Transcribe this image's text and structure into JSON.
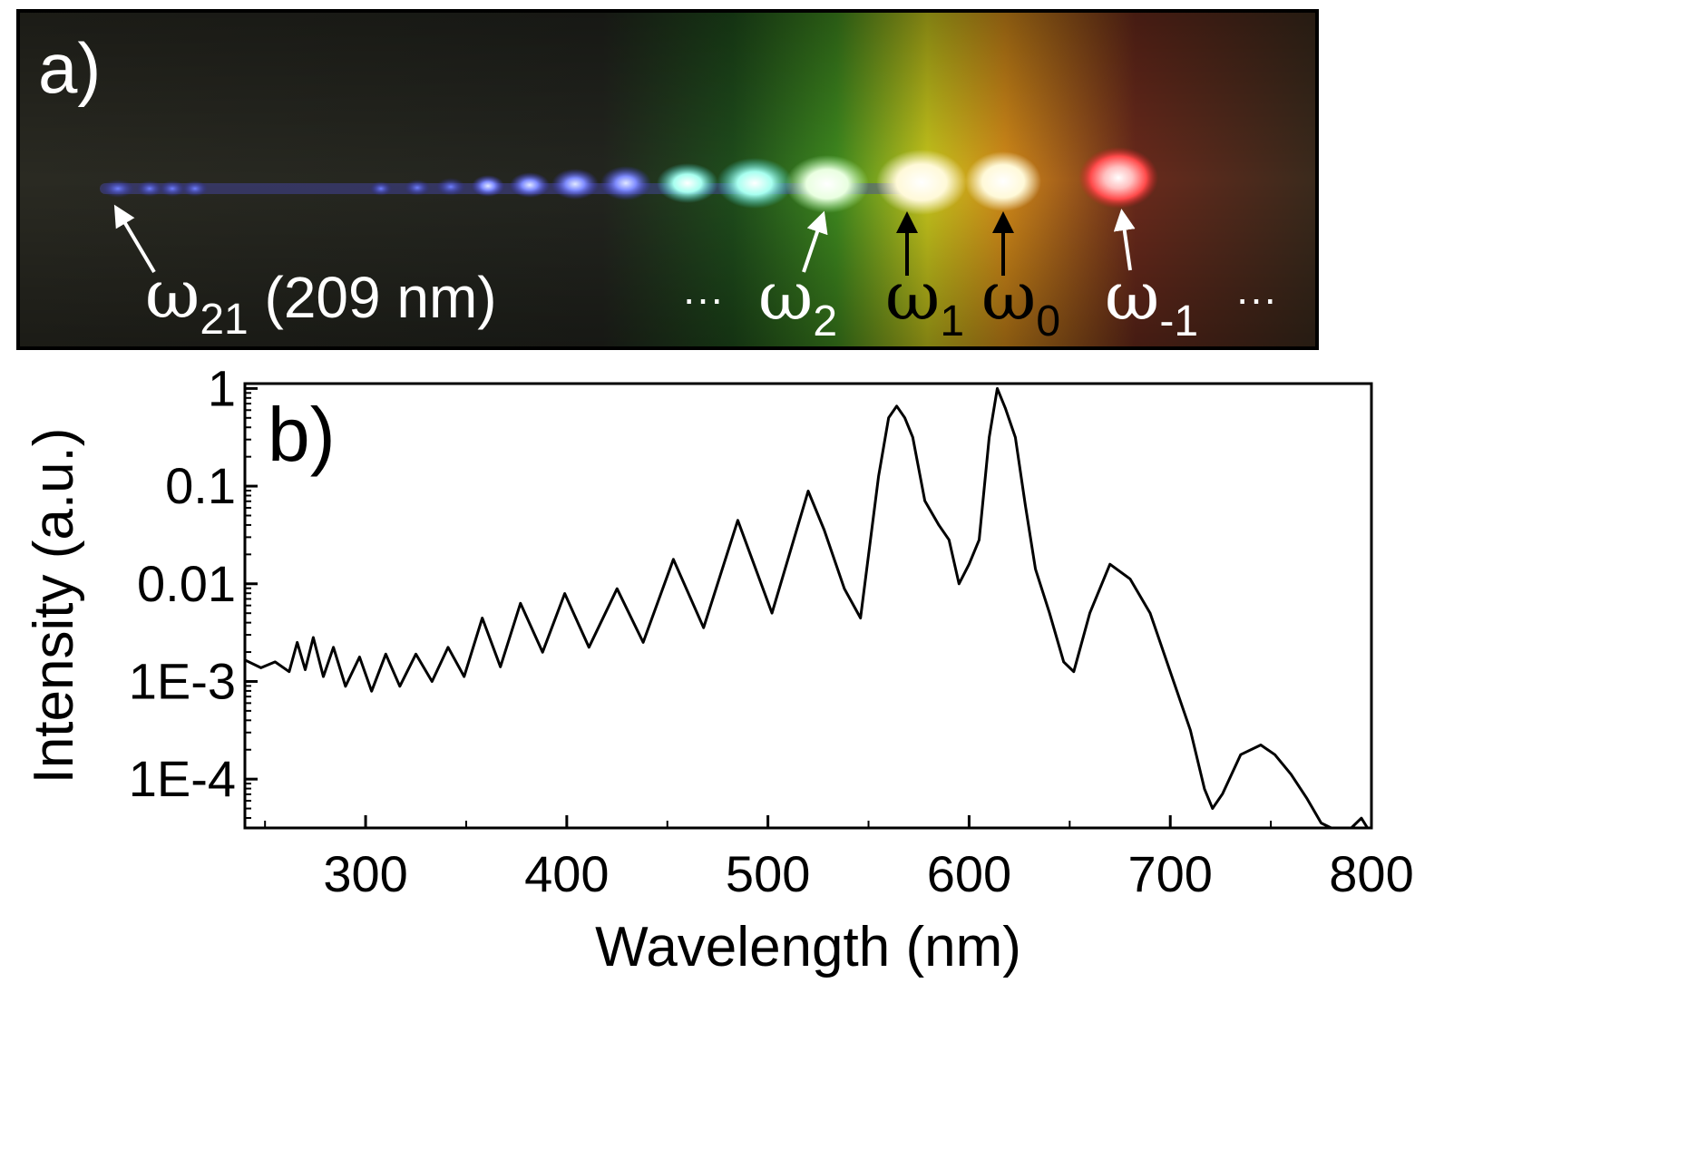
{
  "panel_a": {
    "label": "a)",
    "orders": [
      {
        "name": "omega-21",
        "symbol": "ω",
        "sub": "21",
        "suffix": " (209 nm)",
        "color": "#ffffff",
        "arrow_color": "#ffffff"
      },
      {
        "name": "omega-2",
        "symbol": "ω",
        "sub": "2",
        "suffix": "",
        "color": "#ffffff",
        "arrow_color": "#ffffff"
      },
      {
        "name": "omega-1",
        "symbol": "ω",
        "sub": "1",
        "suffix": "",
        "color": "#000000",
        "arrow_color": "#000000"
      },
      {
        "name": "omega-0",
        "symbol": "ω",
        "sub": "0",
        "suffix": "",
        "color": "#000000",
        "arrow_color": "#000000"
      },
      {
        "name": "omega-minus1",
        "symbol": "ω",
        "sub": "-1",
        "suffix": "",
        "color": "#ffffff",
        "arrow_color": "#ffffff"
      }
    ],
    "ellipsis_left": "···",
    "ellipsis_right": "···",
    "colors": {
      "background": "#2a261c",
      "border": "#000000"
    }
  },
  "panel_b": {
    "label": "b)"
  },
  "chart_data": {
    "type": "line",
    "title": "",
    "xlabel": "Wavelength (nm)",
    "ylabel": "Intensity (a.u.)",
    "xlim": [
      240,
      800
    ],
    "ylim_log10": [
      -4.5,
      0.05
    ],
    "y_scale": "log",
    "xticks": [
      300,
      400,
      500,
      600,
      700,
      800
    ],
    "xtick_labels": [
      "300",
      "400",
      "500",
      "600",
      "700",
      "800"
    ],
    "yticks_log10": [
      0,
      -1,
      -2,
      -3,
      -4
    ],
    "ytick_labels": [
      "1",
      "0.1",
      "0.01",
      "1E-3",
      "1E-4"
    ],
    "line_color": "#000000",
    "series": [
      {
        "name": "spectrum",
        "x": [
          240,
          248,
          255,
          262,
          266,
          270,
          274,
          279,
          284,
          290,
          297,
          303,
          310,
          317,
          325,
          333,
          341,
          349,
          358,
          367,
          377,
          388,
          399,
          411,
          425,
          438,
          453,
          468,
          485,
          502,
          520,
          528,
          538,
          546,
          555,
          560,
          564,
          568,
          572,
          578,
          585,
          590,
          595,
          600,
          605,
          610,
          614,
          618,
          623,
          628,
          633,
          640,
          647,
          652,
          660,
          670,
          680,
          690,
          700,
          710,
          717,
          721,
          726,
          735,
          745,
          752,
          760,
          768,
          775,
          780,
          790,
          795,
          798
        ],
        "y": [
          -2.78,
          -2.86,
          -2.8,
          -2.9,
          -2.6,
          -2.88,
          -2.55,
          -2.95,
          -2.65,
          -3.05,
          -2.75,
          -3.1,
          -2.72,
          -3.05,
          -2.72,
          -3.0,
          -2.65,
          -2.95,
          -2.35,
          -2.85,
          -2.2,
          -2.7,
          -2.1,
          -2.65,
          -2.05,
          -2.6,
          -1.75,
          -2.45,
          -1.35,
          -2.3,
          -1.05,
          -1.45,
          -2.05,
          -2.35,
          -0.9,
          -0.3,
          -0.18,
          -0.3,
          -0.5,
          -1.15,
          -1.4,
          -1.55,
          -2.0,
          -1.8,
          -1.55,
          -0.5,
          0.0,
          -0.2,
          -0.5,
          -1.2,
          -1.85,
          -2.3,
          -2.8,
          -2.9,
          -2.3,
          -1.8,
          -1.95,
          -2.3,
          -2.9,
          -3.5,
          -4.1,
          -4.3,
          -4.15,
          -3.75,
          -3.65,
          -3.75,
          -3.95,
          -4.2,
          -4.45,
          -4.5,
          -4.5,
          -4.4,
          -4.5
        ]
      }
    ]
  }
}
